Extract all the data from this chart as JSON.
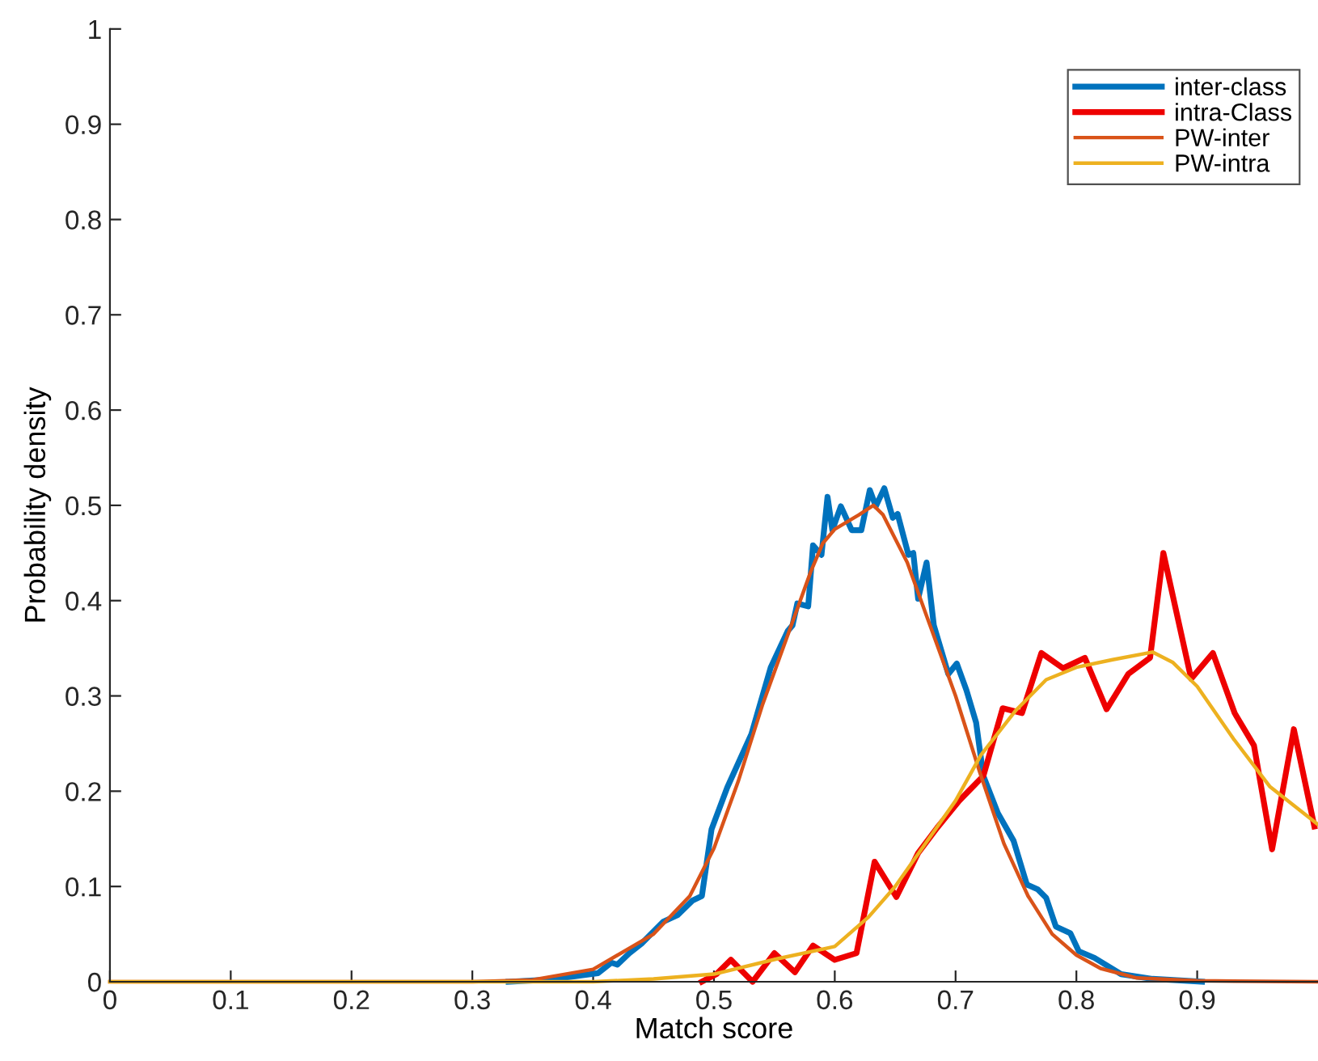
{
  "chart_data": {
    "type": "line",
    "xlabel": "Match score",
    "ylabel": "Probability density",
    "xlim": [
      0,
      1
    ],
    "ylim": [
      0,
      1
    ],
    "xticks": [
      0,
      0.1,
      0.2,
      0.3,
      0.4,
      0.5,
      0.6,
      0.7,
      0.8,
      0.9
    ],
    "yticks": [
      0,
      0.1,
      0.2,
      0.3,
      0.4,
      0.5,
      0.6,
      0.7,
      0.8,
      0.9,
      1
    ],
    "grid": false,
    "legend": "top right",
    "marker": "none",
    "line_style": "solid",
    "series": [
      {
        "name": "inter-class",
        "color": "#0072bd",
        "x": [
          0.33,
          0.36,
          0.38,
          0.404,
          0.415,
          0.42,
          0.43,
          0.44,
          0.458,
          0.47,
          0.482,
          0.49,
          0.498,
          0.511,
          0.531,
          0.547,
          0.561,
          0.565,
          0.569,
          0.578,
          0.582,
          0.589,
          0.594,
          0.598,
          0.605,
          0.614,
          0.622,
          0.629,
          0.634,
          0.641,
          0.648,
          0.652,
          0.661,
          0.665,
          0.669,
          0.676,
          0.682,
          0.694,
          0.701,
          0.709,
          0.717,
          0.723,
          0.735,
          0.748,
          0.759,
          0.768,
          0.775,
          0.783,
          0.795,
          0.802,
          0.815,
          0.837,
          0.863,
          0.904
        ],
        "values": [
          0,
          0.002,
          0.005,
          0.009,
          0.02,
          0.018,
          0.03,
          0.04,
          0.063,
          0.07,
          0.085,
          0.09,
          0.16,
          0.204,
          0.26,
          0.33,
          0.368,
          0.374,
          0.397,
          0.394,
          0.458,
          0.448,
          0.509,
          0.474,
          0.499,
          0.474,
          0.474,
          0.516,
          0.499,
          0.518,
          0.487,
          0.491,
          0.448,
          0.45,
          0.402,
          0.44,
          0.374,
          0.323,
          0.334,
          0.306,
          0.272,
          0.216,
          0.177,
          0.148,
          0.102,
          0.097,
          0.088,
          0.058,
          0.051,
          0.032,
          0.025,
          0.008,
          0.003,
          0
        ]
      },
      {
        "name": "intra-Class",
        "color": "#ee0000",
        "x": [
          0.49,
          0.502,
          0.514,
          0.532,
          0.55,
          0.567,
          0.582,
          0.6,
          0.618,
          0.633,
          0.651,
          0.669,
          0.685,
          0.703,
          0.723,
          0.739,
          0.755,
          0.771,
          0.789,
          0.807,
          0.825,
          0.843,
          0.861,
          0.872,
          0.895,
          0.913,
          0.931,
          0.947,
          0.962,
          0.98,
          0.997
        ],
        "values": [
          0,
          0.008,
          0.023,
          0,
          0.03,
          0.01,
          0.038,
          0.023,
          0.03,
          0.126,
          0.089,
          0.135,
          0.162,
          0.19,
          0.216,
          0.287,
          0.282,
          0.345,
          0.329,
          0.34,
          0.286,
          0.323,
          0.34,
          0.45,
          0.318,
          0.345,
          0.282,
          0.248,
          0.139,
          0.265,
          0.163
        ]
      },
      {
        "name": "PW-inter",
        "color": "#d95319",
        "x": [
          0,
          0.3,
          0.35,
          0.4,
          0.45,
          0.48,
          0.5,
          0.52,
          0.54,
          0.56,
          0.58,
          0.59,
          0.6,
          0.62,
          0.632,
          0.64,
          0.66,
          0.68,
          0.7,
          0.72,
          0.74,
          0.76,
          0.78,
          0.8,
          0.82,
          0.85,
          0.9,
          1.0
        ],
        "values": [
          0,
          0,
          0.002,
          0.013,
          0.05,
          0.09,
          0.14,
          0.21,
          0.29,
          0.36,
          0.43,
          0.46,
          0.475,
          0.49,
          0.5,
          0.49,
          0.44,
          0.37,
          0.3,
          0.22,
          0.145,
          0.09,
          0.05,
          0.028,
          0.014,
          0.004,
          0.001,
          0
        ]
      },
      {
        "name": "PW-intra",
        "color": "#edb120",
        "x": [
          0,
          0.4,
          0.45,
          0.5,
          0.552,
          0.6,
          0.628,
          0.65,
          0.7,
          0.721,
          0.75,
          0.775,
          0.8,
          0.83,
          0.863,
          0.88,
          0.9,
          0.93,
          0.96,
          1.0
        ],
        "values": [
          0,
          0,
          0.003,
          0.008,
          0.024,
          0.037,
          0.068,
          0.1,
          0.19,
          0.238,
          0.285,
          0.317,
          0.33,
          0.338,
          0.346,
          0.335,
          0.31,
          0.255,
          0.205,
          0.165
        ]
      }
    ]
  }
}
